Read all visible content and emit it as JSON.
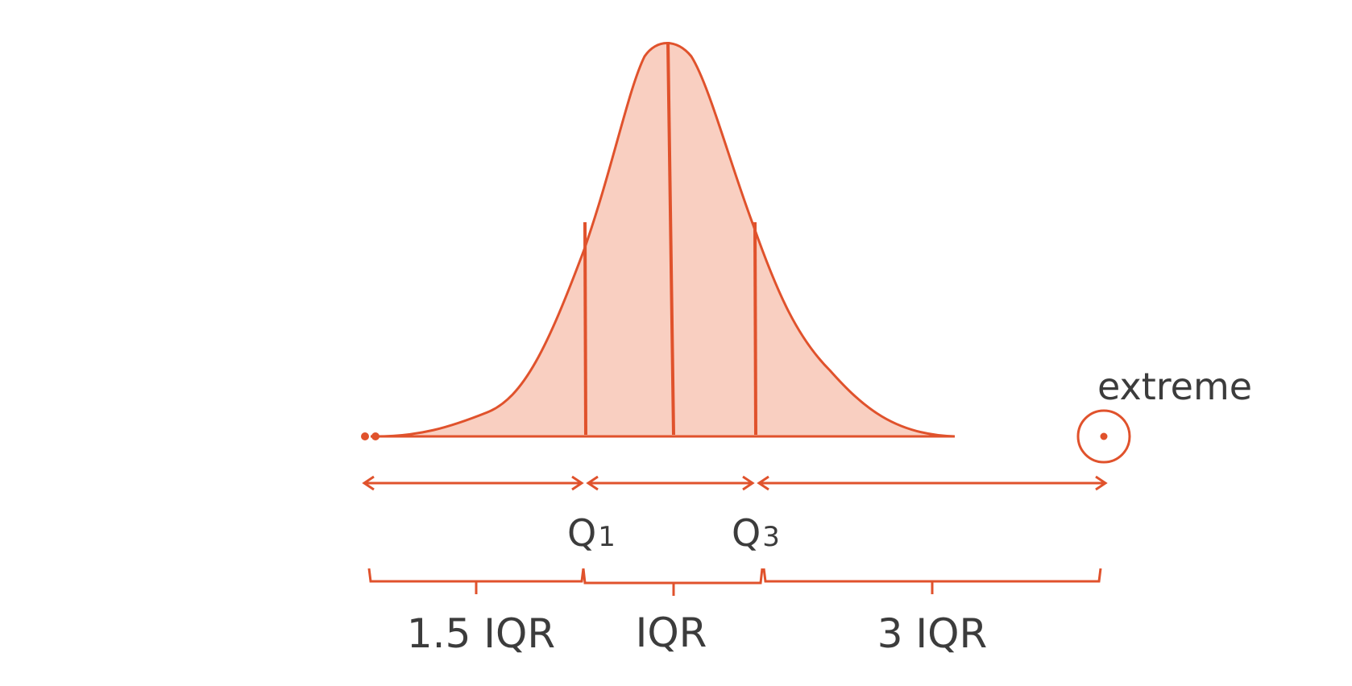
{
  "colors": {
    "accent": "#e0522c",
    "fill": "#f9cfc1",
    "text": "#3c3c3c",
    "background": "#ffffff"
  },
  "labels": {
    "q1_main": "Q",
    "q1_sub": "1",
    "q3_main": "Q",
    "q3_sub": "3",
    "extreme": "extreme",
    "left_range": "1.5 IQR",
    "middle_range": "IQR",
    "right_range": "3 IQR"
  }
}
